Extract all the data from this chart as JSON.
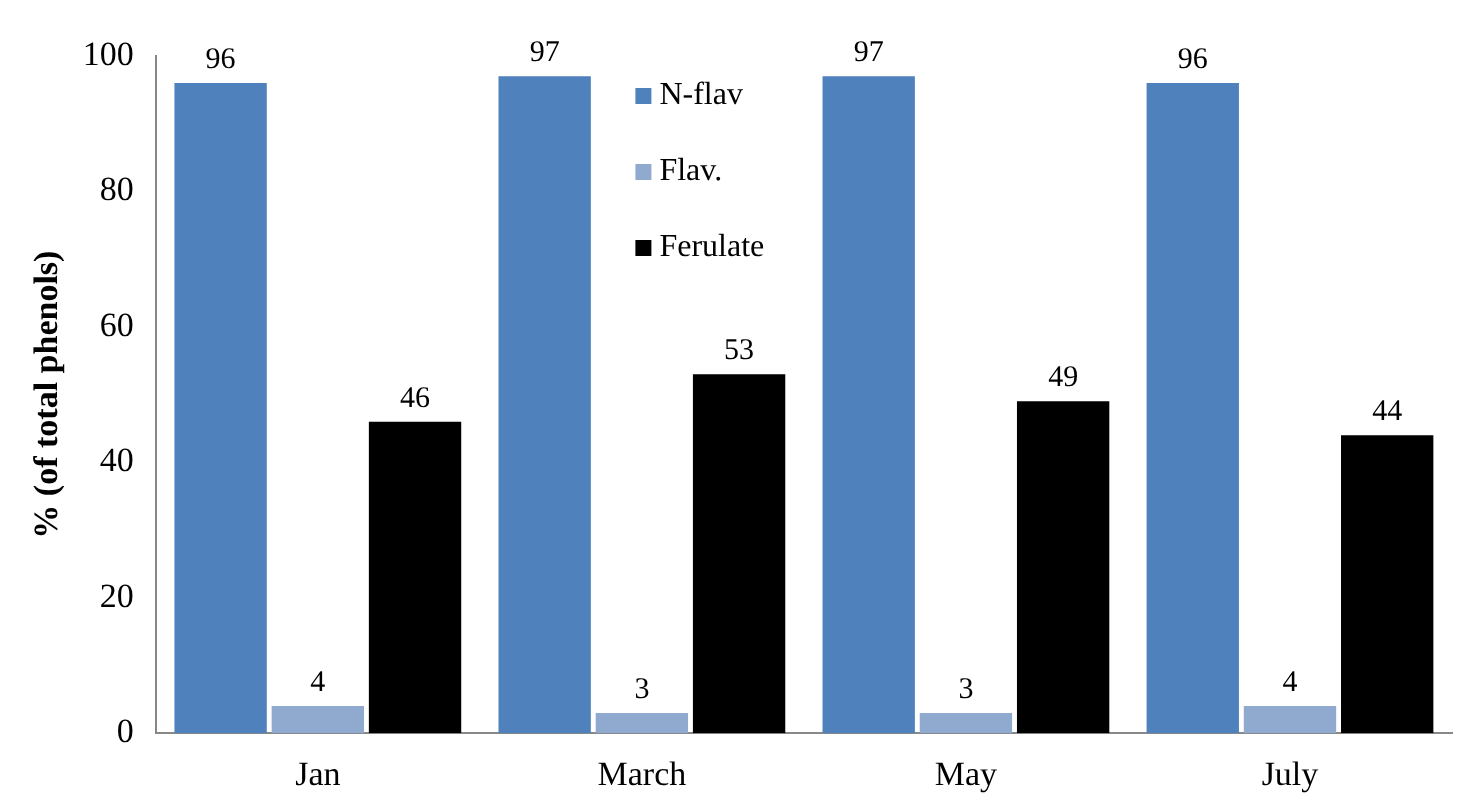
{
  "chart_data": {
    "type": "bar",
    "ylabel": "% (of total phenols)",
    "categories": [
      "Jan",
      "March",
      "May",
      "July"
    ],
    "series": [
      {
        "name": "N-flav",
        "color": "#4f81bd",
        "values": [
          96,
          97,
          97,
          96
        ]
      },
      {
        "name": "Flav.",
        "color": "#8fa9cf",
        "values": [
          4,
          3,
          3,
          4
        ]
      },
      {
        "name": "Ferulate",
        "color": "#000000",
        "values": [
          46,
          53,
          49,
          44
        ]
      }
    ],
    "ylim": [
      0,
      100
    ],
    "yticks": [
      0,
      20,
      40,
      60,
      80,
      100
    ],
    "grid": false,
    "legend": "top",
    "data_labels": true
  }
}
